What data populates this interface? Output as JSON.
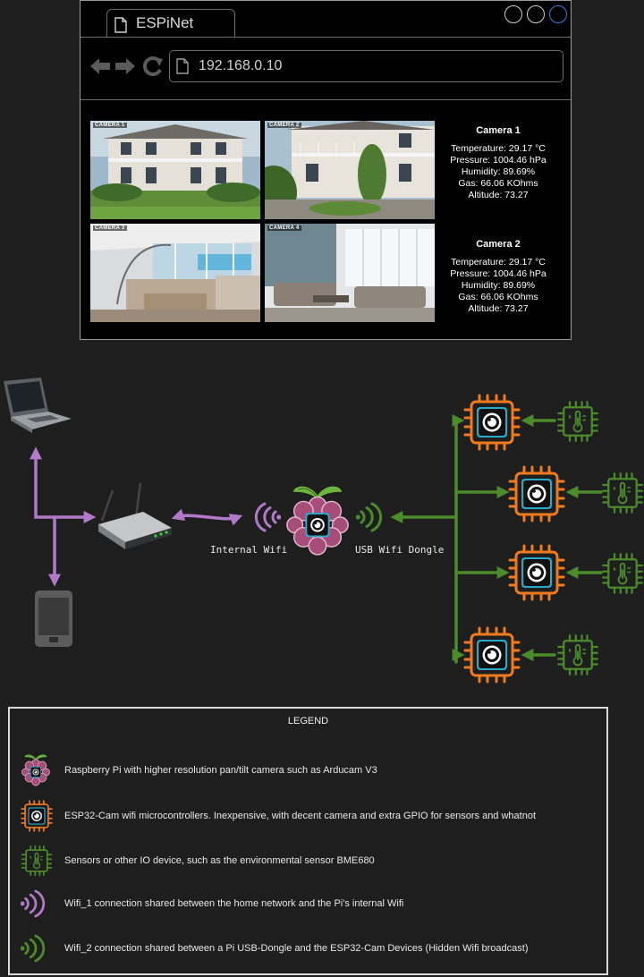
{
  "browser": {
    "tab_title": "ESPiNet",
    "address": "192.168.0.10",
    "cameras": [
      {
        "label": "CAMERA 1"
      },
      {
        "label": "CAMERA 2"
      },
      {
        "label": "CAMERA 3"
      },
      {
        "label": "CAMERA 4"
      }
    ],
    "readings": [
      {
        "title": "Camera 1",
        "temperature": "Temperature: 29.17 °C",
        "pressure": "Pressure: 1004.46 hPa",
        "humidity": "Humidity: 89.69%",
        "gas": "Gas: 66.06 KOhms",
        "altitude": "Altitude: 73.27"
      },
      {
        "title": "Camera 2",
        "temperature": "Temperature: 29.17 °C",
        "pressure": "Pressure: 1004.46 hPa",
        "humidity": "Humidity: 89.69%",
        "gas": "Gas: 66.06 KOhms",
        "altitude": "Altitude: 73.27"
      }
    ]
  },
  "diagram": {
    "internal_wifi_label": "Internal Wifi",
    "usb_dongle_label": "USB Wifi Dongle"
  },
  "legend": {
    "title": "LEGEND",
    "items": [
      {
        "icon": "raspberry-pi-icon",
        "text": "Raspberry Pi with higher resolution pan/tilt camera such as Arducam V3"
      },
      {
        "icon": "esp32-cam-icon",
        "text": "ESP32-Cam wifi microcontrollers. Inexpensive, with decent camera and extra GPIO for sensors and whatnot"
      },
      {
        "icon": "sensor-chip-icon",
        "text": "Sensors or other IO device, such as the environmental sensor BME680"
      },
      {
        "icon": "wifi-purple-icon",
        "text": "Wifi_1 connection shared between the home network and the Pi's internal Wifi"
      },
      {
        "icon": "wifi-green-icon",
        "text": "Wifi_2 connection shared between a Pi USB-Dongle and the ESP32-Cam Devices (Hidden Wifi broadcast)"
      }
    ]
  },
  "colors": {
    "purple_link": "#b07ac9",
    "green_link": "#4c8a2c",
    "esp_orange": "#f07a1e",
    "sensor_green": "#4c8a2c"
  }
}
